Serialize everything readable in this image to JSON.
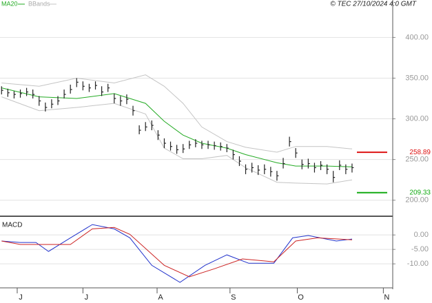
{
  "chart_data": [
    {
      "type": "ohlc",
      "source": "© TEC 27/10/2024 4:0 GMT",
      "x": [
        0,
        2,
        4,
        6,
        8,
        10,
        12,
        14,
        16,
        18,
        20,
        22,
        24,
        26,
        28,
        30,
        32,
        34,
        36,
        38,
        40,
        42,
        44,
        46,
        48,
        50,
        52,
        54,
        56,
        58,
        60,
        62,
        64,
        66,
        68,
        70,
        72,
        74,
        76,
        78,
        80,
        82,
        84,
        86,
        88,
        90,
        92,
        94,
        96,
        98,
        100,
        102,
        104,
        106,
        108,
        110,
        112
      ],
      "high": [
        340,
        337,
        334,
        336,
        338,
        336,
        328,
        320,
        324,
        328,
        336,
        342,
        350,
        346,
        343,
        346,
        340,
        343,
        331,
        328,
        330,
        316,
        292,
        296,
        298,
        286,
        276,
        272,
        268,
        269,
        273,
        275,
        273,
        273,
        272,
        271,
        269,
        262,
        254,
        244,
        246,
        243,
        244,
        241,
        236,
        252,
        278,
        264,
        250,
        251,
        246,
        248,
        244,
        236,
        249,
        244,
        245
      ],
      "low": [
        330,
        327,
        325,
        326,
        328,
        325,
        316,
        309,
        313,
        317,
        325,
        331,
        339,
        335,
        333,
        336,
        328,
        333,
        319,
        316,
        318,
        304,
        281,
        285,
        286,
        274,
        264,
        261,
        257,
        258,
        263,
        265,
        263,
        263,
        262,
        261,
        259,
        250,
        242,
        232,
        234,
        231,
        232,
        229,
        224,
        239,
        266,
        252,
        238,
        239,
        234,
        237,
        232,
        222,
        237,
        232,
        234
      ],
      "close": [
        335,
        332,
        330,
        331,
        333,
        330,
        322,
        314,
        318,
        322,
        330,
        336,
        345,
        340,
        338,
        341,
        333,
        338,
        325,
        322,
        324,
        310,
        286,
        290,
        292,
        280,
        270,
        266,
        262,
        263,
        268,
        270,
        268,
        268,
        267,
        266,
        264,
        256,
        248,
        238,
        240,
        237,
        238,
        235,
        230,
        245,
        272,
        258,
        244,
        245,
        240,
        243,
        238,
        228,
        243,
        238,
        240
      ],
      "bar_color": "#222222",
      "ma": {
        "name": "MA20",
        "color": "#22aa22",
        "x": [
          0,
          12,
          24,
          36,
          46,
          52,
          58,
          64,
          72,
          78,
          88,
          94,
          104,
          112
        ],
        "values": [
          338,
          327,
          325,
          331,
          319,
          297,
          280,
          270,
          264,
          256,
          246,
          242,
          242,
          241
        ]
      },
      "bands": {
        "name": "BBands",
        "color": "#c4c4c4",
        "x": [
          0,
          12,
          24,
          36,
          46,
          52,
          58,
          64,
          72,
          78,
          88,
          94,
          104,
          112
        ],
        "upper": [
          344,
          340,
          350,
          344,
          354,
          340,
          319,
          290,
          272,
          265,
          259,
          266,
          266,
          263
        ],
        "lower": [
          327,
          310,
          314,
          319,
          306,
          264,
          251,
          251,
          255,
          240,
          222,
          221,
          220,
          225
        ]
      },
      "levels": [
        {
          "value": 258.89,
          "label": "258.89",
          "color": "#dd1111"
        },
        {
          "value": 209.33,
          "label": "209.33",
          "color": "#11aa11"
        }
      ],
      "xlim": [
        -0.5,
        125
      ],
      "xticks": [
        {
          "value": 5,
          "label": "J"
        },
        {
          "value": 26,
          "label": "J"
        },
        {
          "value": 49.7,
          "label": "A"
        },
        {
          "value": 73,
          "label": "S"
        },
        {
          "value": 94.5,
          "label": "O"
        },
        {
          "value": 122,
          "label": "N"
        }
      ],
      "ylim": [
        182,
        446
      ],
      "yticks": [
        {
          "value": 200,
          "label": "200.00"
        },
        {
          "value": 250,
          "label": "250.00"
        },
        {
          "value": 300,
          "label": "300.00"
        },
        {
          "value": 350,
          "label": "350.00"
        },
        {
          "value": 400,
          "label": "400.00"
        }
      ],
      "grid": true
    },
    {
      "type": "line",
      "title": "MACD",
      "series": [
        {
          "color": "#2233cc",
          "x": [
            0,
            6,
            11,
            15,
            22,
            29,
            36,
            41,
            48,
            57,
            65,
            72,
            79,
            87,
            93,
            98,
            107,
            112
          ],
          "values": [
            -2.1,
            -2.6,
            -2.6,
            -5.7,
            -1,
            3.6,
            2.1,
            -1,
            -10.5,
            -16.4,
            -10.5,
            -6.9,
            -9.8,
            -9.8,
            -1,
            -0.2,
            -2.1,
            -1.4
          ]
        },
        {
          "color": "#cc2222",
          "x": [
            0,
            6,
            13,
            22,
            29,
            36,
            41,
            52,
            60,
            68,
            77,
            87,
            94,
            101,
            112
          ],
          "values": [
            -2.1,
            -3.3,
            -3.3,
            -3.3,
            2.1,
            2.6,
            0.2,
            -10.5,
            -14.5,
            -11.7,
            -8.3,
            -9.3,
            -2.1,
            -1,
            -1.7
          ]
        }
      ],
      "xlim": [
        -0.5,
        125
      ],
      "ylim": [
        -18.3,
        6
      ],
      "yticks": [
        {
          "value": 0,
          "label": "0.00"
        },
        {
          "value": -5,
          "label": "-5.00"
        },
        {
          "value": -10,
          "label": "-10.00"
        }
      ],
      "grid": true
    }
  ]
}
